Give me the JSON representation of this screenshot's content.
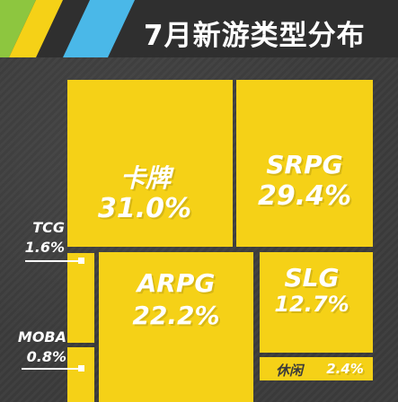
{
  "title": "7月新游类型分布",
  "chart_data": {
    "type": "treemap",
    "title": "7月新游类型分布",
    "unit": "%",
    "categories": [
      "卡牌",
      "SRPG",
      "ARPG",
      "SLG",
      "休闲",
      "TCG",
      "MOBA"
    ],
    "values": [
      31.0,
      29.4,
      22.2,
      12.7,
      2.4,
      1.6,
      0.8
    ],
    "labels": [
      "31.0%",
      "29.4%",
      "22.2%",
      "12.7%",
      "2.4%",
      "1.6%",
      "0.8%"
    ]
  },
  "colors": {
    "tile": "#f5d117",
    "background": "#3b3b3b",
    "header_green": "#8dc63f",
    "header_blue": "#4ab8e8",
    "header_yellow": "#f5d117",
    "text": "#ffffff"
  }
}
